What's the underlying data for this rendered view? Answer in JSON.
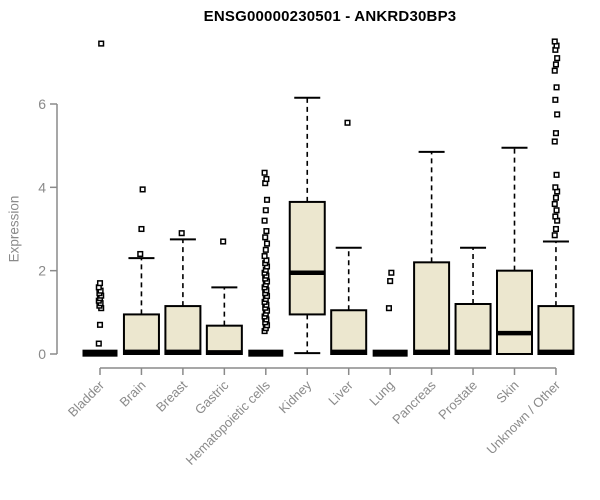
{
  "chart_data": {
    "type": "boxplot",
    "title": "ENSG00000230501 - ANKRD30BP3",
    "ylabel": "Expression",
    "ylim": [
      0,
      7.6
    ],
    "yticks": [
      0,
      2,
      4,
      6
    ],
    "grid": false,
    "legend": "none",
    "box_fill": "#ECE7CF",
    "box_stroke": "#000000",
    "axis_color": "#8A8A8A",
    "categories": [
      "Bladder",
      "Brain",
      "Breast",
      "Gastric",
      "Hematopoietic cells",
      "Kidney",
      "Liver",
      "Lung",
      "Pancreas",
      "Prostate",
      "Skin",
      "Unknown / Other"
    ],
    "series": [
      {
        "label": "Bladder",
        "q1": 0,
        "median": 0.02,
        "q3": 0.05,
        "whisker_low": 0,
        "whisker_high": 0.05,
        "outliers": [
          0.25,
          0.7,
          1.1,
          1.16,
          1.22,
          1.28,
          1.34,
          1.4,
          1.46,
          1.52,
          1.6,
          1.7,
          7.45
        ]
      },
      {
        "label": "Brain",
        "q1": 0,
        "median": 0.05,
        "q3": 0.95,
        "whisker_low": 0,
        "whisker_high": 2.3,
        "outliers": [
          2.4,
          3.0,
          3.95
        ]
      },
      {
        "label": "Breast",
        "q1": 0,
        "median": 0.05,
        "q3": 1.15,
        "whisker_low": 0,
        "whisker_high": 2.75,
        "outliers": [
          2.9
        ]
      },
      {
        "label": "Gastric",
        "q1": 0,
        "median": 0.04,
        "q3": 0.68,
        "whisker_low": 0,
        "whisker_high": 1.6,
        "outliers": [
          2.7
        ]
      },
      {
        "label": "Hematopoietic cells",
        "q1": 0,
        "median": 0.02,
        "q3": 0.05,
        "whisker_low": 0,
        "whisker_high": 0.05,
        "outliers": [
          0.55,
          0.62,
          0.69,
          0.76,
          0.83,
          0.9,
          0.97,
          1.04,
          1.11,
          1.18,
          1.25,
          1.32,
          1.39,
          1.46,
          1.53,
          1.6,
          1.67,
          1.74,
          1.81,
          1.88,
          1.95,
          2.02,
          2.1,
          2.18,
          2.25,
          2.35,
          2.5,
          2.65,
          2.8,
          2.95,
          3.2,
          3.45,
          3.7,
          4.1,
          4.2,
          4.35
        ]
      },
      {
        "label": "Kidney",
        "q1": 0.95,
        "median": 1.95,
        "q3": 3.65,
        "whisker_low": 0.02,
        "whisker_high": 6.15,
        "outliers": []
      },
      {
        "label": "Liver",
        "q1": 0,
        "median": 0.05,
        "q3": 1.05,
        "whisker_low": 0,
        "whisker_high": 2.55,
        "outliers": [
          5.55
        ]
      },
      {
        "label": "Lung",
        "q1": 0,
        "median": 0.02,
        "q3": 0.05,
        "whisker_low": 0,
        "whisker_high": 0.05,
        "outliers": [
          1.1,
          1.75,
          1.95
        ]
      },
      {
        "label": "Pancreas",
        "q1": 0,
        "median": 0.05,
        "q3": 2.2,
        "whisker_low": 0,
        "whisker_high": 4.85,
        "outliers": []
      },
      {
        "label": "Prostate",
        "q1": 0,
        "median": 0.05,
        "q3": 1.2,
        "whisker_low": 0,
        "whisker_high": 2.55,
        "outliers": []
      },
      {
        "label": "Skin",
        "q1": 0,
        "median": 0.5,
        "q3": 2.0,
        "whisker_low": 0,
        "whisker_high": 4.95,
        "outliers": []
      },
      {
        "label": "Unknown / Other",
        "q1": 0,
        "median": 0.05,
        "q3": 1.15,
        "whisker_low": 0,
        "whisker_high": 2.7,
        "outliers": [
          2.85,
          3.0,
          3.2,
          3.3,
          3.45,
          3.6,
          3.75,
          3.9,
          4.0,
          4.3,
          5.1,
          5.3,
          5.75,
          6.1,
          6.4,
          6.8,
          6.95,
          7.1,
          7.3,
          7.4,
          7.5
        ]
      }
    ]
  }
}
